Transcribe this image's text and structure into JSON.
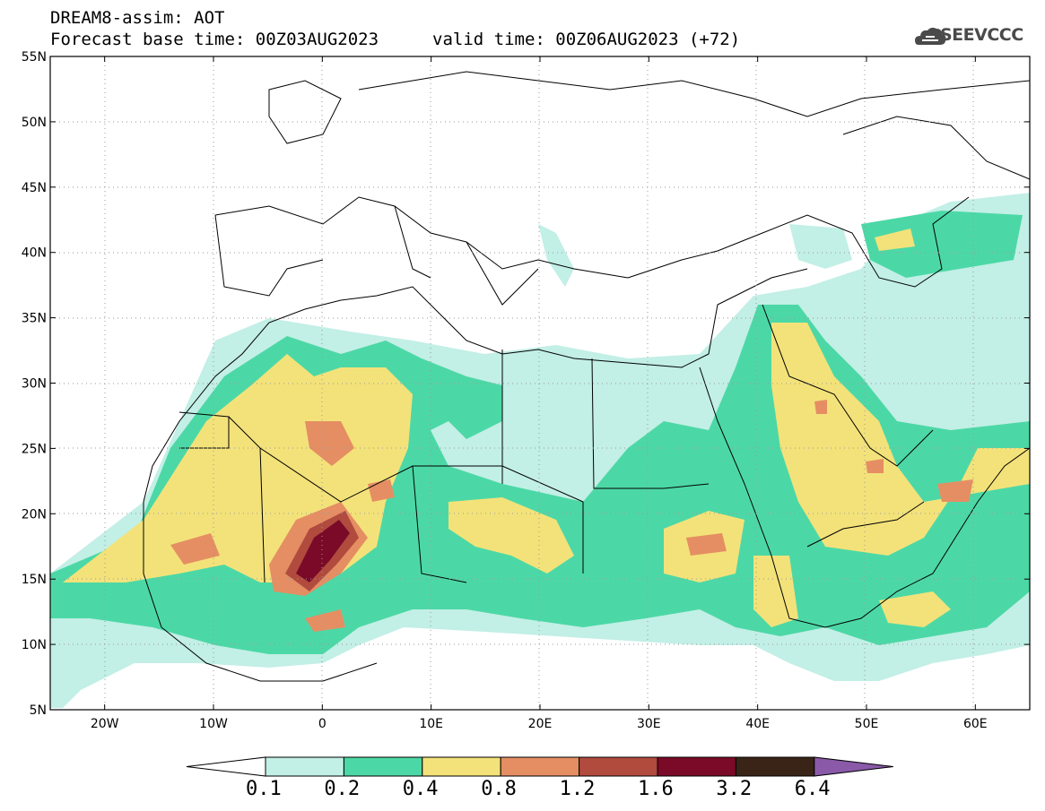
{
  "header": {
    "title": "DREAM8-assim: AOT",
    "base_time": "Forecast base time: 00Z03AUG2023",
    "valid_time": "valid time: 00Z06AUG2023 (+72)",
    "logo_text": "SEEVCCC"
  },
  "map": {
    "lon_range": [
      -25,
      65
    ],
    "lat_range": [
      5,
      55
    ],
    "lat_labels": [
      "5N",
      "10N",
      "15N",
      "20N",
      "25N",
      "30N",
      "35N",
      "40N",
      "45N",
      "50N",
      "55N"
    ],
    "lon_labels": [
      "20W",
      "10W",
      "0",
      "10E",
      "20E",
      "30E",
      "40E",
      "50E",
      "60E"
    ],
    "grid": "dotted"
  },
  "colorbar": {
    "labels": [
      "0.1",
      "0.2",
      "0.4",
      "0.8",
      "1.2",
      "1.6",
      "3.2",
      "6.4"
    ],
    "colors": [
      "#ffffff",
      "#c2efe6",
      "#4cd8a6",
      "#f3e27a",
      "#e58e63",
      "#b04b3e",
      "#7a0a28",
      "#3a2417",
      "#8a5aa8"
    ]
  }
}
